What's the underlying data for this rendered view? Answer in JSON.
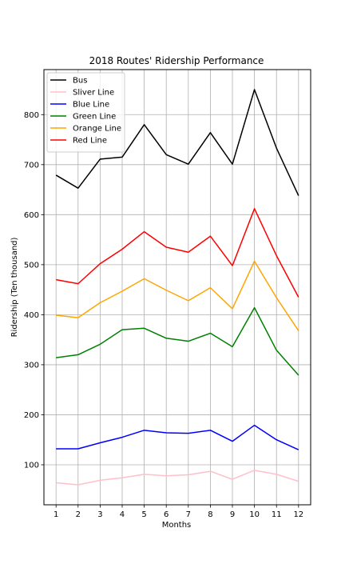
{
  "chart_data": {
    "type": "line",
    "title": "2018 Routes' Ridership Performance",
    "xlabel": "Months",
    "ylabel": "Ridership (Ten thousand)",
    "x": [
      1,
      2,
      3,
      4,
      5,
      6,
      7,
      8,
      9,
      10,
      11,
      12
    ],
    "x_tick_labels": [
      "1",
      "2",
      "3",
      "4",
      "5",
      "6",
      "7",
      "8",
      "9",
      "10",
      "11",
      "12"
    ],
    "y_ticks": [
      100,
      200,
      300,
      400,
      500,
      600,
      700,
      800
    ],
    "y_tick_labels": [
      "100",
      "200",
      "300",
      "400",
      "500",
      "600",
      "700",
      "800"
    ],
    "xlim": [
      0.45,
      12.55
    ],
    "ylim": [
      20,
      890
    ],
    "grid": true,
    "legend_position": "upper-left",
    "series": [
      {
        "name": "Bus",
        "color": "#000000",
        "values": [
          679,
          653,
          711,
          715,
          780,
          720,
          701,
          764,
          701,
          850,
          733,
          638
        ]
      },
      {
        "name": "Sliver Line",
        "color": "#ffc0cb",
        "values": [
          64,
          60,
          69,
          74,
          81,
          78,
          80,
          87,
          71,
          89,
          81,
          67
        ]
      },
      {
        "name": "Blue Line",
        "color": "#0000ff",
        "values": [
          132,
          132,
          144,
          155,
          169,
          164,
          163,
          169,
          147,
          179,
          150,
          130
        ]
      },
      {
        "name": "Green Line",
        "color": "#008000",
        "values": [
          314,
          320,
          341,
          370,
          373,
          353,
          347,
          363,
          336,
          414,
          329,
          279
        ]
      },
      {
        "name": "Orange Line",
        "color": "#ffa500",
        "values": [
          399,
          394,
          424,
          447,
          472,
          449,
          428,
          454,
          412,
          507,
          434,
          368
        ]
      },
      {
        "name": "Red Line",
        "color": "#ff0000",
        "values": [
          470,
          462,
          502,
          531,
          566,
          535,
          525,
          557,
          498,
          612,
          518,
          435
        ]
      }
    ]
  }
}
